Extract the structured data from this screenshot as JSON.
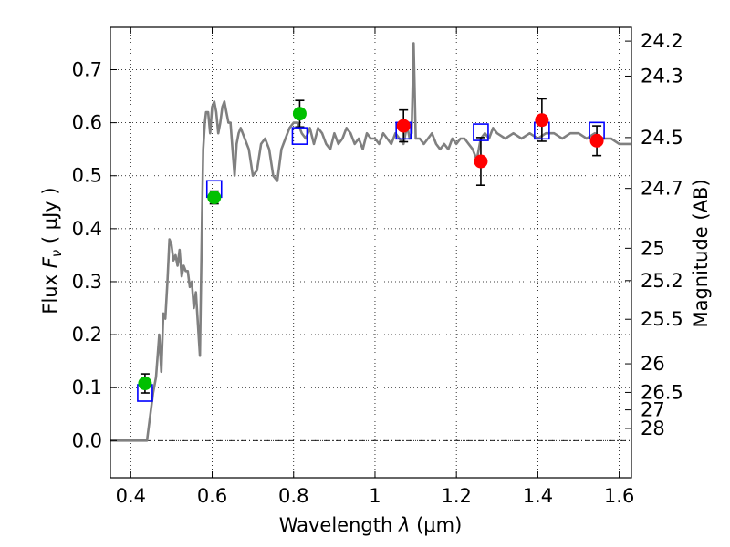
{
  "chart_data": {
    "type": "scatter",
    "xlabel": "Wavelength  λ (μm)",
    "ylabel": "Flux  F_ν  ( μJy )",
    "ylabel_parts": {
      "prefix": "Flux  ",
      "symbol": "F",
      "subscript": "ν",
      "suffix": "  ( μJy )"
    },
    "xlabel_parts": {
      "prefix": "Wavelength  ",
      "symbol": "λ",
      "suffix": " (μm)"
    },
    "y2label": "Magnitude (AB)",
    "xlim": [
      0.35,
      1.63
    ],
    "ylim": [
      -0.07,
      0.78
    ],
    "grid": true,
    "xticks": [
      0.4,
      0.6,
      0.8,
      1.0,
      1.2,
      1.4,
      1.6
    ],
    "xtick_labels": [
      "0.4",
      "0.6",
      "0.8",
      "1",
      "1.2",
      "1.4",
      "1.6"
    ],
    "yticks": [
      0.0,
      0.1,
      0.2,
      0.3,
      0.4,
      0.5,
      0.6,
      0.7
    ],
    "ytick_labels": [
      "0.0",
      "0.1",
      "0.2",
      "0.3",
      "0.4",
      "0.5",
      "0.6",
      "0.7"
    ],
    "y2ticks": [
      {
        "label": "24.2",
        "flux": 0.754
      },
      {
        "label": "24.3",
        "flux": 0.688
      },
      {
        "label": "24.5",
        "flux": 0.572
      },
      {
        "label": "24.7",
        "flux": 0.476
      },
      {
        "label": "25",
        "flux": 0.363
      },
      {
        "label": "25.2",
        "flux": 0.302
      },
      {
        "label": "25.5",
        "flux": 0.229
      },
      {
        "label": "26",
        "flux": 0.145
      },
      {
        "label": "26.5",
        "flux": 0.091
      },
      {
        "label": "27",
        "flux": 0.058
      },
      {
        "label": "28",
        "flux": 0.023
      }
    ],
    "model_spectrum": {
      "color": "#808080",
      "x": [
        0.35,
        0.42,
        0.43,
        0.44,
        0.455,
        0.462,
        0.47,
        0.475,
        0.48,
        0.485,
        0.49,
        0.495,
        0.5,
        0.505,
        0.51,
        0.515,
        0.52,
        0.525,
        0.53,
        0.535,
        0.54,
        0.545,
        0.55,
        0.555,
        0.56,
        0.565,
        0.57,
        0.575,
        0.578,
        0.582,
        0.585,
        0.59,
        0.595,
        0.6,
        0.605,
        0.61,
        0.615,
        0.62,
        0.625,
        0.63,
        0.635,
        0.64,
        0.645,
        0.65,
        0.655,
        0.66,
        0.665,
        0.67,
        0.68,
        0.69,
        0.7,
        0.71,
        0.72,
        0.73,
        0.74,
        0.75,
        0.76,
        0.77,
        0.78,
        0.79,
        0.8,
        0.81,
        0.82,
        0.83,
        0.84,
        0.85,
        0.86,
        0.87,
        0.88,
        0.89,
        0.9,
        0.91,
        0.92,
        0.93,
        0.94,
        0.95,
        0.96,
        0.97,
        0.98,
        0.99,
        1.0,
        1.01,
        1.02,
        1.03,
        1.04,
        1.05,
        1.06,
        1.07,
        1.075,
        1.08,
        1.085,
        1.09,
        1.095,
        1.1,
        1.11,
        1.12,
        1.13,
        1.14,
        1.15,
        1.16,
        1.17,
        1.18,
        1.19,
        1.2,
        1.21,
        1.22,
        1.23,
        1.24,
        1.25,
        1.26,
        1.27,
        1.28,
        1.29,
        1.3,
        1.32,
        1.34,
        1.36,
        1.38,
        1.4,
        1.42,
        1.44,
        1.46,
        1.48,
        1.5,
        1.52,
        1.54,
        1.56,
        1.58,
        1.6,
        1.63
      ],
      "y": [
        0.0,
        0.0,
        0.0,
        0.0,
        0.09,
        0.12,
        0.2,
        0.13,
        0.24,
        0.23,
        0.3,
        0.38,
        0.37,
        0.34,
        0.35,
        0.33,
        0.36,
        0.31,
        0.33,
        0.32,
        0.32,
        0.29,
        0.3,
        0.25,
        0.28,
        0.22,
        0.16,
        0.42,
        0.55,
        0.6,
        0.62,
        0.62,
        0.58,
        0.63,
        0.64,
        0.62,
        0.58,
        0.6,
        0.63,
        0.64,
        0.62,
        0.6,
        0.6,
        0.55,
        0.5,
        0.56,
        0.58,
        0.59,
        0.57,
        0.55,
        0.5,
        0.51,
        0.56,
        0.57,
        0.55,
        0.5,
        0.49,
        0.55,
        0.57,
        0.59,
        0.6,
        0.6,
        0.58,
        0.57,
        0.59,
        0.56,
        0.59,
        0.58,
        0.56,
        0.55,
        0.58,
        0.56,
        0.57,
        0.59,
        0.58,
        0.56,
        0.57,
        0.55,
        0.58,
        0.57,
        0.57,
        0.56,
        0.58,
        0.57,
        0.56,
        0.58,
        0.57,
        0.56,
        0.58,
        0.59,
        0.57,
        0.58,
        0.75,
        0.57,
        0.57,
        0.56,
        0.57,
        0.58,
        0.56,
        0.55,
        0.56,
        0.55,
        0.57,
        0.56,
        0.57,
        0.57,
        0.56,
        0.55,
        0.53,
        0.57,
        0.58,
        0.57,
        0.59,
        0.58,
        0.57,
        0.58,
        0.57,
        0.58,
        0.57,
        0.58,
        0.58,
        0.57,
        0.58,
        0.58,
        0.57,
        0.58,
        0.57,
        0.57,
        0.56,
        0.56
      ]
    },
    "series": [
      {
        "color": "#00c000",
        "x": [
          0.435,
          0.605,
          0.815
        ],
        "y": [
          0.108,
          0.459,
          0.617
        ],
        "yerr": [
          0.018,
          0.012,
          0.025
        ]
      },
      {
        "color": "#ff0000",
        "x": [
          1.07,
          1.26,
          1.41,
          1.545
        ],
        "y": [
          0.594,
          0.527,
          0.605,
          0.566
        ],
        "yerr": [
          0.03,
          0.045,
          0.04,
          0.028
        ]
      },
      {
        "color": "#0000ff",
        "x": [
          0.435,
          0.605,
          0.815,
          1.07,
          1.26,
          1.41,
          1.545
        ],
        "y": [
          0.09,
          0.475,
          0.575,
          0.585,
          0.582,
          0.585,
          0.585
        ]
      }
    ]
  }
}
